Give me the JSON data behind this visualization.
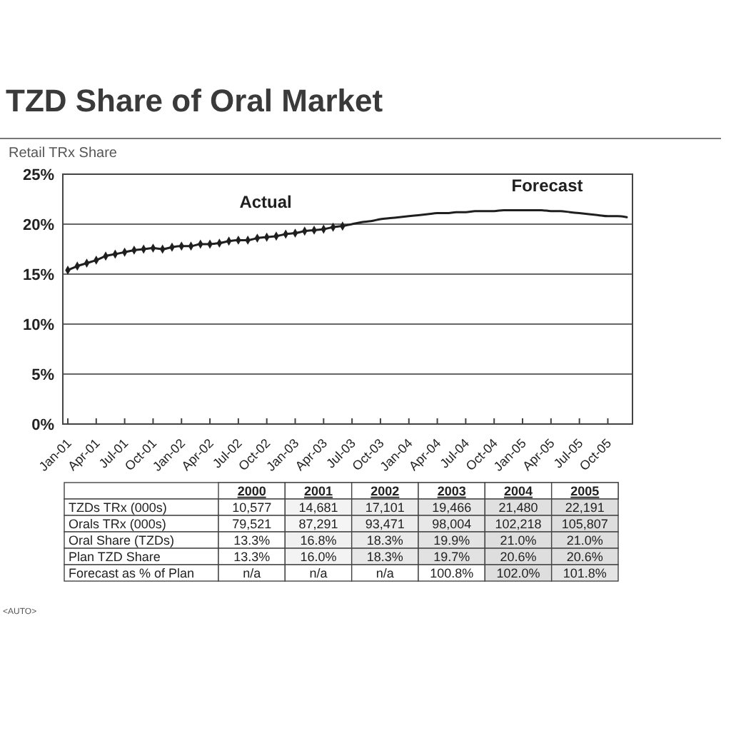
{
  "chart_data": [
    {
      "type": "line",
      "title": "TZD Share of Oral Market",
      "ylabel": "Retail TRx Share",
      "categories": [
        "Jan-01",
        null,
        null,
        "Apr-01",
        null,
        null,
        "Jul-01",
        null,
        null,
        "Oct-01",
        null,
        null,
        "Jan-02",
        null,
        null,
        "Apr-02",
        null,
        null,
        "Jul-02",
        null,
        null,
        "Oct-02",
        null,
        null,
        "Jan-03",
        null,
        null,
        "Apr-03",
        null,
        null,
        "Jul-03",
        null,
        null,
        "Oct-03",
        null,
        null,
        "Jan-04",
        null,
        null,
        "Apr-04",
        null,
        null,
        "Jul-04",
        null,
        null,
        "Oct-04",
        null,
        null,
        "Jan-05",
        null,
        null,
        "Apr-05",
        null,
        null,
        "Jul-05",
        null,
        null,
        "Oct-05",
        null,
        null
      ],
      "series": [
        {
          "name": "Actual",
          "color": "#1f1f1f",
          "marker": "diamond",
          "values": [
            15.4,
            15.8,
            16.1,
            16.4,
            16.8,
            17.0,
            17.2,
            17.4,
            17.5,
            17.6,
            17.5,
            17.7,
            17.8,
            17.8,
            18.0,
            18.0,
            18.1,
            18.3,
            18.4,
            18.4,
            18.6,
            18.7,
            18.8,
            19.0,
            19.1,
            19.3,
            19.4,
            19.5,
            19.7,
            19.8,
            null,
            null,
            null,
            null,
            null,
            null,
            null,
            null,
            null,
            null,
            null,
            null,
            null,
            null,
            null,
            null,
            null,
            null,
            null,
            null,
            null,
            null,
            null,
            null,
            null,
            null,
            null,
            null,
            null,
            null
          ]
        },
        {
          "name": "Forecast",
          "color": "#1f1f1f",
          "marker": "none",
          "values": [
            null,
            null,
            null,
            null,
            null,
            null,
            null,
            null,
            null,
            null,
            null,
            null,
            null,
            null,
            null,
            null,
            null,
            null,
            null,
            null,
            null,
            null,
            null,
            null,
            null,
            null,
            null,
            null,
            null,
            19.8,
            20.0,
            20.2,
            20.3,
            20.5,
            20.6,
            20.7,
            20.8,
            20.9,
            21.0,
            21.1,
            21.1,
            21.2,
            21.2,
            21.3,
            21.3,
            21.3,
            21.4,
            21.4,
            21.4,
            21.4,
            21.4,
            21.3,
            21.3,
            21.2,
            21.1,
            21.0,
            20.9,
            20.8,
            20.8,
            20.7
          ]
        }
      ],
      "ylim": [
        0,
        25
      ],
      "yticks": [
        {
          "value": 0,
          "label": "0%"
        },
        {
          "value": 5,
          "label": "5%"
        },
        {
          "value": 10,
          "label": "10%"
        },
        {
          "value": 15,
          "label": "15%"
        },
        {
          "value": 20,
          "label": "20%"
        },
        {
          "value": 25,
          "label": "25%"
        }
      ],
      "grid": "y",
      "line_style": "solid",
      "annotations": [
        "<AUTO>"
      ]
    },
    {
      "type": "heatmap",
      "categories": [
        "2000",
        "2001",
        "2002",
        "2003",
        "2004",
        "2005"
      ],
      "y_categories": [
        "TZDs TRx (000s)",
        "Orals TRx (000s)",
        "Oral Share (TZDs)",
        "Plan TZD Share",
        "Forecast as % of Plan"
      ],
      "cells": [
        [
          10577,
          14681,
          17101,
          19466,
          21480,
          22191
        ],
        [
          79521,
          87291,
          93471,
          98004,
          102218,
          105807
        ],
        [
          13.3,
          16.8,
          18.3,
          19.9,
          21.0,
          21.0
        ],
        [
          13.3,
          16.0,
          18.3,
          19.7,
          20.6,
          20.6
        ],
        [
          null,
          null,
          null,
          100.8,
          102.0,
          101.8
        ]
      ],
      "cell_labels": [
        [
          "10,577",
          "14,681",
          "17,101",
          "19,466",
          "21,480",
          "22,191"
        ],
        [
          "79,521",
          "87,291",
          "93,471",
          "98,004",
          "102,218",
          "105,807"
        ],
        [
          "13.3%",
          "16.8%",
          "18.3%",
          "19.9%",
          "21.0%",
          "21.0%"
        ],
        [
          "13.3%",
          "16.0%",
          "18.3%",
          "19.7%",
          "20.6%",
          "20.6%"
        ],
        [
          "n/a",
          "n/a",
          "n/a",
          "100.8%",
          "102.0%",
          "101.8%"
        ]
      ]
    }
  ]
}
